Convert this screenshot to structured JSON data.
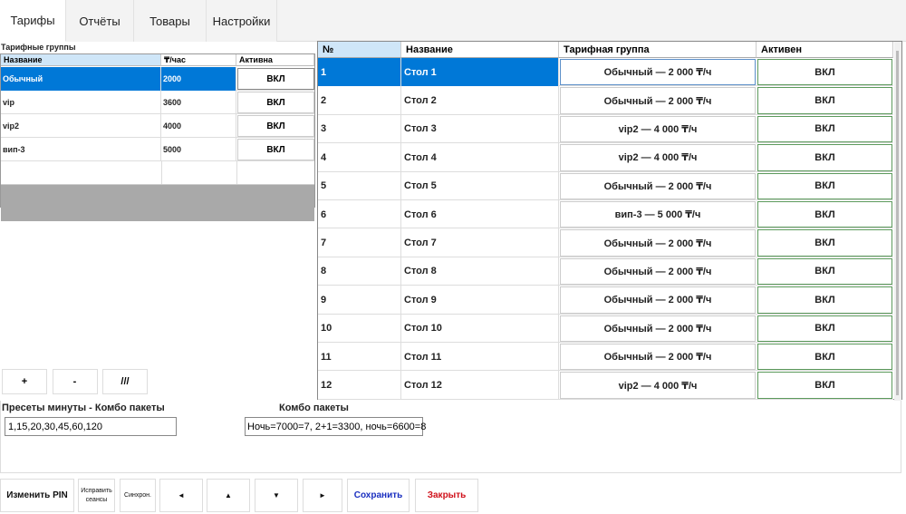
{
  "tabs": [
    "Тарифы",
    "Отчёты",
    "Товары",
    "Настройки"
  ],
  "tariff_groups": {
    "title": "Тарифные группы",
    "columns": [
      "Название",
      "₸/час",
      "Активна"
    ],
    "rows": [
      [
        "Обычный",
        2000,
        "ВКЛ"
      ],
      [
        "vip",
        3600,
        "ВКЛ"
      ],
      [
        "vip2",
        4000,
        "ВКЛ"
      ],
      [
        "вип-3",
        5000,
        "ВКЛ"
      ]
    ]
  },
  "group_buttons": [
    "+",
    "-",
    "///"
  ],
  "tables_grid": {
    "columns": [
      "№",
      "Название",
      "Тарифная группа",
      "Активен"
    ],
    "rows": [
      [
        1,
        "Стол 1",
        "Обычный — 2 000 ₸/ч",
        "ВКЛ"
      ],
      [
        2,
        "Стол 2",
        "Обычный — 2 000 ₸/ч",
        "ВКЛ"
      ],
      [
        3,
        "Стол 3",
        "vip2 — 4 000 ₸/ч",
        "ВКЛ"
      ],
      [
        4,
        "Стол 4",
        "vip2 — 4 000 ₸/ч",
        "ВКЛ"
      ],
      [
        5,
        "Стол 5",
        "Обычный — 2 000 ₸/ч",
        "ВКЛ"
      ],
      [
        6,
        "Стол 6",
        "вип-3 — 5 000 ₸/ч",
        "ВКЛ"
      ],
      [
        7,
        "Стол 7",
        "Обычный — 2 000 ₸/ч",
        "ВКЛ"
      ],
      [
        8,
        "Стол 8",
        "Обычный — 2 000 ₸/ч",
        "ВКЛ"
      ],
      [
        9,
        "Стол 9",
        "Обычный — 2 000 ₸/ч",
        "ВКЛ"
      ],
      [
        10,
        "Стол 10",
        "Обычный — 2 000 ₸/ч",
        "ВКЛ"
      ],
      [
        11,
        "Стол 11",
        "Обычный — 2 000 ₸/ч",
        "ВКЛ"
      ],
      [
        12,
        "Стол 12",
        "vip2 — 4 000 ₸/ч",
        "ВКЛ"
      ]
    ]
  },
  "presets": {
    "label": "Пресеты минуты - Комбо пакеты",
    "value": "1,15,20,30,45,60,120"
  },
  "combo": {
    "label": "Комбо пакеты",
    "value": "Ночь=7000=7, 2+1=3300, ночь=6600=8"
  },
  "footer_buttons": [
    "Изменить PIN",
    "Исправить сеансы",
    "Синхрон.",
    "◄",
    "▲",
    "▼",
    "►",
    "Сохранить",
    "Закрыть"
  ]
}
